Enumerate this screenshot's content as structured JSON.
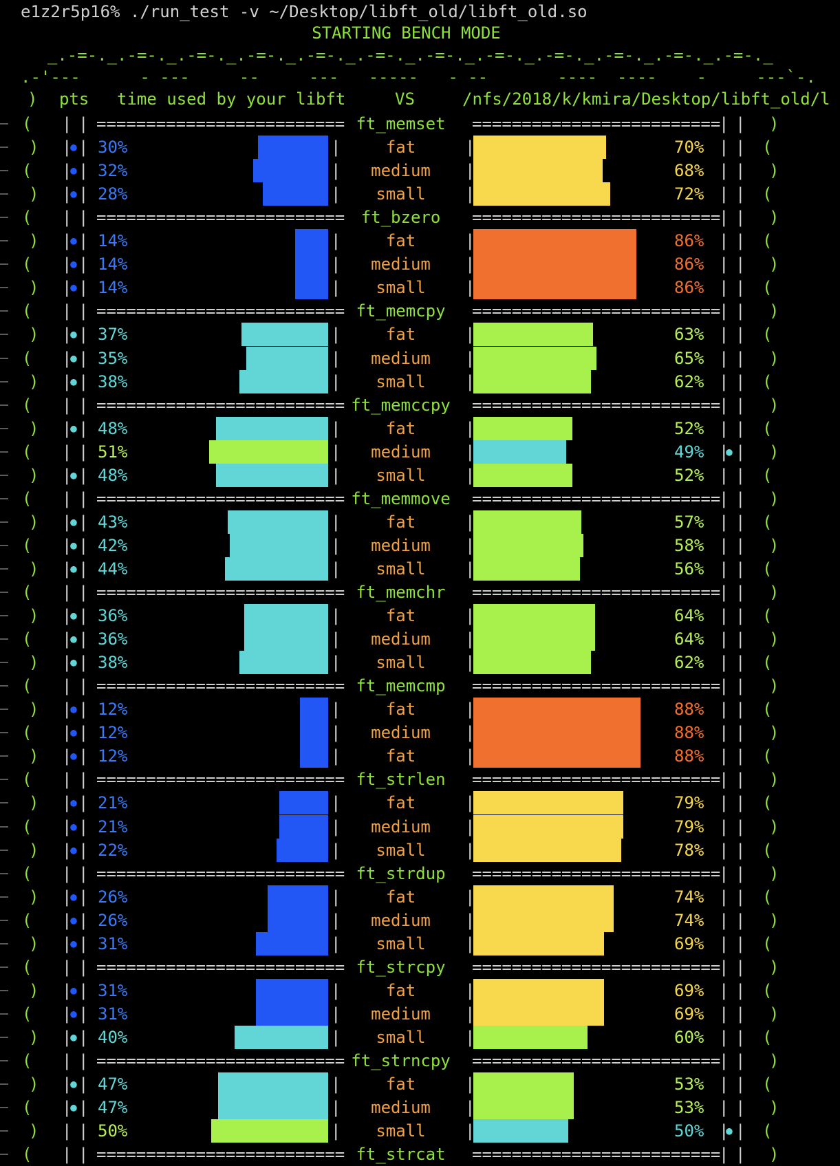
{
  "terminal": {
    "command": "e1z2r5p16% ./run_test -v ~/Desktop/libft_old/libft_old.so",
    "banner": "STARTING BENCH MODE",
    "ascii_top": "  _.-=-._.-=-._.-=-._.-=-._.-=-._.-=-._.-=-._.-=-._.-=-._.-=-._.-=-._.-=-._",
    "ascii_second": ".-'---      - ---     --     ---   -----   - --       ----  ----    -     ---`-.",
    "header": {
      "pts": "pts",
      "time_label": "time used by your libft",
      "vs": "VS",
      "path": "/nfs/2018/k/kmira/Desktop/libft_old/l"
    },
    "separator_left": "=========================",
    "separator_right": "=========================",
    "bracket_open": "(",
    "bracket_close": ")",
    "pipe": "|",
    "dot": "●",
    "colors": {
      "blue": "#2256f5",
      "cyan": "#62d6d6",
      "green": "#a8f04c",
      "yellow": "#f8d84c",
      "orange": "#f07030",
      "text_blue": "#3a7af8",
      "text_cyan": "#62d6d6",
      "text_green": "#b8f05a",
      "text_yellow": "#f8d84c",
      "text_orange": "#f07030"
    }
  },
  "bench": [
    {
      "name": "ft_memset",
      "rows": [
        {
          "size": "fat",
          "left": "30%",
          "right": "70%",
          "lv": 30,
          "rv": 70,
          "lc": "blue",
          "rc": "yellow",
          "dot": "left"
        },
        {
          "size": "medium",
          "left": "32%",
          "right": "68%",
          "lv": 32,
          "rv": 68,
          "lc": "blue",
          "rc": "yellow",
          "dot": "left"
        },
        {
          "size": "small",
          "left": "28%",
          "right": "72%",
          "lv": 28,
          "rv": 72,
          "lc": "blue",
          "rc": "yellow",
          "dot": "left"
        }
      ]
    },
    {
      "name": "ft_bzero",
      "rows": [
        {
          "size": "fat",
          "left": "14%",
          "right": "86%",
          "lv": 14,
          "rv": 86,
          "lc": "blue",
          "rc": "orange",
          "dot": "left"
        },
        {
          "size": "medium",
          "left": "14%",
          "right": "86%",
          "lv": 14,
          "rv": 86,
          "lc": "blue",
          "rc": "orange",
          "dot": "left"
        },
        {
          "size": "small",
          "left": "14%",
          "right": "86%",
          "lv": 14,
          "rv": 86,
          "lc": "blue",
          "rc": "orange",
          "dot": "left"
        }
      ]
    },
    {
      "name": "ft_memcpy",
      "rows": [
        {
          "size": "fat",
          "left": "37%",
          "right": "63%",
          "lv": 37,
          "rv": 63,
          "lc": "cyan",
          "rc": "green",
          "dot": "left"
        },
        {
          "size": "medium",
          "left": "35%",
          "right": "65%",
          "lv": 35,
          "rv": 65,
          "lc": "cyan",
          "rc": "green",
          "dot": "left"
        },
        {
          "size": "small",
          "left": "38%",
          "right": "62%",
          "lv": 38,
          "rv": 62,
          "lc": "cyan",
          "rc": "green",
          "dot": "left"
        }
      ]
    },
    {
      "name": "ft_memccpy",
      "rows": [
        {
          "size": "fat",
          "left": "48%",
          "right": "52%",
          "lv": 48,
          "rv": 52,
          "lc": "cyan",
          "rc": "green",
          "dot": "left"
        },
        {
          "size": "medium",
          "left": "51%",
          "right": "49%",
          "lv": 51,
          "rv": 49,
          "lc": "green",
          "rc": "cyan",
          "dot": "right"
        },
        {
          "size": "small",
          "left": "48%",
          "right": "52%",
          "lv": 48,
          "rv": 52,
          "lc": "cyan",
          "rc": "green",
          "dot": "left"
        }
      ]
    },
    {
      "name": "ft_memmove",
      "rows": [
        {
          "size": "fat",
          "left": "43%",
          "right": "57%",
          "lv": 43,
          "rv": 57,
          "lc": "cyan",
          "rc": "green",
          "dot": "left"
        },
        {
          "size": "medium",
          "left": "42%",
          "right": "58%",
          "lv": 42,
          "rv": 58,
          "lc": "cyan",
          "rc": "green",
          "dot": "left"
        },
        {
          "size": "small",
          "left": "44%",
          "right": "56%",
          "lv": 44,
          "rv": 56,
          "lc": "cyan",
          "rc": "green",
          "dot": "left"
        }
      ]
    },
    {
      "name": "ft_memchr",
      "rows": [
        {
          "size": "fat",
          "left": "36%",
          "right": "64%",
          "lv": 36,
          "rv": 64,
          "lc": "cyan",
          "rc": "green",
          "dot": "left"
        },
        {
          "size": "medium",
          "left": "36%",
          "right": "64%",
          "lv": 36,
          "rv": 64,
          "lc": "cyan",
          "rc": "green",
          "dot": "left"
        },
        {
          "size": "small",
          "left": "38%",
          "right": "62%",
          "lv": 38,
          "rv": 62,
          "lc": "cyan",
          "rc": "green",
          "dot": "left"
        }
      ]
    },
    {
      "name": "ft_memcmp",
      "rows": [
        {
          "size": "fat",
          "left": "12%",
          "right": "88%",
          "lv": 12,
          "rv": 88,
          "lc": "blue",
          "rc": "orange",
          "dot": "left"
        },
        {
          "size": "medium",
          "left": "12%",
          "right": "88%",
          "lv": 12,
          "rv": 88,
          "lc": "blue",
          "rc": "orange",
          "dot": "left"
        },
        {
          "size": "fat",
          "left": "12%",
          "right": "88%",
          "lv": 12,
          "rv": 88,
          "lc": "blue",
          "rc": "orange",
          "dot": "left"
        }
      ]
    },
    {
      "name": "ft_strlen",
      "rows": [
        {
          "size": "fat",
          "left": "21%",
          "right": "79%",
          "lv": 21,
          "rv": 79,
          "lc": "blue",
          "rc": "yellow",
          "dot": "left"
        },
        {
          "size": "medium",
          "left": "21%",
          "right": "79%",
          "lv": 21,
          "rv": 79,
          "lc": "blue",
          "rc": "yellow",
          "dot": "left"
        },
        {
          "size": "small",
          "left": "22%",
          "right": "78%",
          "lv": 22,
          "rv": 78,
          "lc": "blue",
          "rc": "yellow",
          "dot": "left"
        }
      ]
    },
    {
      "name": "ft_strdup",
      "rows": [
        {
          "size": "fat",
          "left": "26%",
          "right": "74%",
          "lv": 26,
          "rv": 74,
          "lc": "blue",
          "rc": "yellow",
          "dot": "left"
        },
        {
          "size": "medium",
          "left": "26%",
          "right": "74%",
          "lv": 26,
          "rv": 74,
          "lc": "blue",
          "rc": "yellow",
          "dot": "left"
        },
        {
          "size": "small",
          "left": "31%",
          "right": "69%",
          "lv": 31,
          "rv": 69,
          "lc": "blue",
          "rc": "yellow",
          "dot": "left"
        }
      ]
    },
    {
      "name": "ft_strcpy",
      "rows": [
        {
          "size": "fat",
          "left": "31%",
          "right": "69%",
          "lv": 31,
          "rv": 69,
          "lc": "blue",
          "rc": "yellow",
          "dot": "left"
        },
        {
          "size": "medium",
          "left": "31%",
          "right": "69%",
          "lv": 31,
          "rv": 69,
          "lc": "blue",
          "rc": "yellow",
          "dot": "left"
        },
        {
          "size": "small",
          "left": "40%",
          "right": "60%",
          "lv": 40,
          "rv": 60,
          "lc": "cyan",
          "rc": "green",
          "dot": "left"
        }
      ]
    },
    {
      "name": "ft_strncpy",
      "rows": [
        {
          "size": "fat",
          "left": "47%",
          "right": "53%",
          "lv": 47,
          "rv": 53,
          "lc": "cyan",
          "rc": "green",
          "dot": "left"
        },
        {
          "size": "medium",
          "left": "47%",
          "right": "53%",
          "lv": 47,
          "rv": 53,
          "lc": "cyan",
          "rc": "green",
          "dot": "left"
        },
        {
          "size": "small",
          "left": "50%",
          "right": "50%",
          "lv": 50,
          "rv": 50,
          "lc": "green",
          "rc": "cyan",
          "dot": "right"
        }
      ]
    },
    {
      "name": "ft_strcat",
      "rows": []
    }
  ]
}
